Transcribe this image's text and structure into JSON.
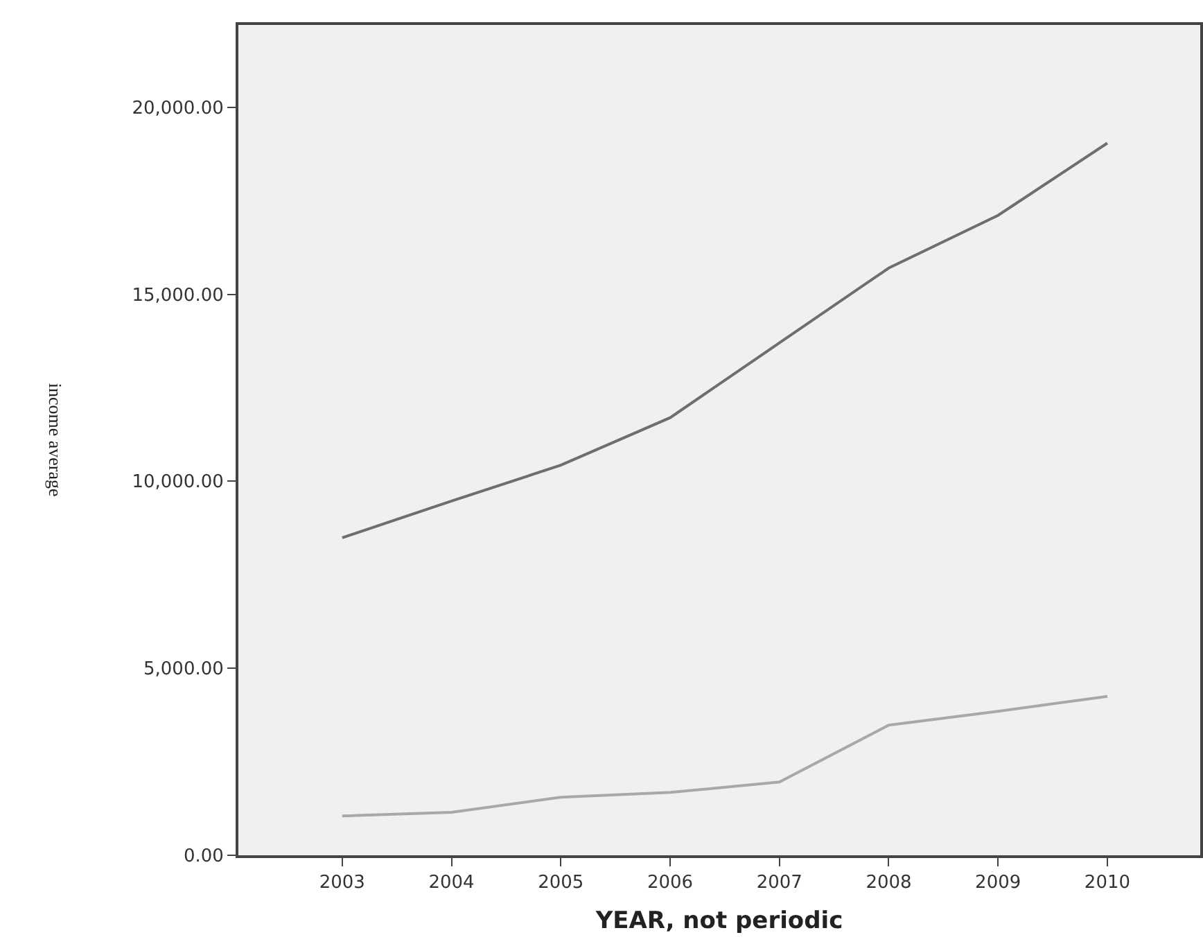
{
  "chart_data": {
    "type": "line",
    "xlabel": "YEAR, not periodic",
    "ylabel": "income average",
    "x": [
      2003,
      2004,
      2005,
      2006,
      2007,
      2008,
      2009,
      2010
    ],
    "series": [
      {
        "color": "#6e6e6e",
        "values": [
          8490,
          9470,
          10430,
          11700,
          13700,
          15700,
          17110,
          19040
        ]
      },
      {
        "color": "#a8a8a8",
        "values": [
          1050,
          1150,
          1550,
          1680,
          1960,
          3480,
          3850,
          4250
        ]
      }
    ],
    "xlim": [
      2002.05,
      2010.85
    ],
    "xticks": [
      2003,
      2004,
      2005,
      2006,
      2007,
      2008,
      2009,
      2010
    ],
    "ylim": [
      0,
      22200
    ],
    "yticks": [
      {
        "value": 0,
        "label": "0.00"
      },
      {
        "value": 5000,
        "label": "5,000.00"
      },
      {
        "value": 10000,
        "label": "10,000.00"
      },
      {
        "value": 15000,
        "label": "15,000.00"
      },
      {
        "value": 20000,
        "label": "20,000.00"
      }
    ],
    "grid": false,
    "marker": "none",
    "line_style": "solid"
  }
}
